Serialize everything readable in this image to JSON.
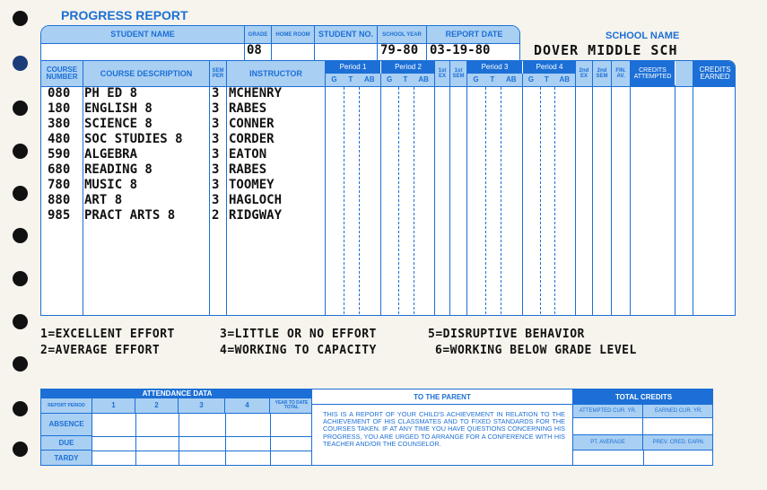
{
  "title": "PROGRESS REPORT",
  "header": {
    "labels": {
      "student_name": "STUDENT NAME",
      "grade": "GRADE",
      "home_room": "HOME ROOM",
      "student_no": "STUDENT NO.",
      "school_year": "SCHOOL YEAR",
      "report_date": "REPORT DATE",
      "school_name": "SCHOOL NAME"
    },
    "values": {
      "student_name": "",
      "grade": "08",
      "home_room": "",
      "student_no": "",
      "school_year": "79-80",
      "report_date": "03-19-80",
      "school_name": "DOVER MIDDLE SCH"
    }
  },
  "table": {
    "headers": {
      "course_number": "COURSE NUMBER",
      "course_description": "COURSE DESCRIPTION",
      "sem_per": "SEM PER",
      "instructor": "INSTRUCTOR",
      "period1": "Period 1",
      "period2": "Period 2",
      "first_ex": "1st EX",
      "first_sem": "1st SEM",
      "period3": "Period 3",
      "period4": "Period 4",
      "second_ex": "2nd EX",
      "second_sem": "2nd SEM",
      "fin_av": "FIN. AV.",
      "credits_attempted": "CREDITS ATTEMPTED",
      "credits_earned": "CREDITS EARNED",
      "sub_g": "G",
      "sub_t": "T",
      "sub_ab": "AB"
    },
    "rows": [
      {
        "number": "080",
        "description": "PH ED 8",
        "sem_per": "3",
        "instructor": "MCHENRY"
      },
      {
        "number": "180",
        "description": "ENGLISH 8",
        "sem_per": "3",
        "instructor": "RABES"
      },
      {
        "number": "380",
        "description": "SCIENCE 8",
        "sem_per": "3",
        "instructor": "CONNER"
      },
      {
        "number": "480",
        "description": "SOC STUDIES 8",
        "sem_per": "3",
        "instructor": "CORDER"
      },
      {
        "number": "590",
        "description": "ALGEBRA",
        "sem_per": "3",
        "instructor": "EATON"
      },
      {
        "number": "680",
        "description": "READING 8",
        "sem_per": "3",
        "instructor": "RABES"
      },
      {
        "number": "780",
        "description": "MUSIC 8",
        "sem_per": "3",
        "instructor": "TOOMEY"
      },
      {
        "number": "880",
        "description": "ART 8",
        "sem_per": "3",
        "instructor": "HAGLOCH"
      },
      {
        "number": "985",
        "description": "PRACT ARTS 8",
        "sem_per": "2",
        "instructor": "RIDGWAY"
      }
    ]
  },
  "legend": [
    "1=EXCELLENT EFFORT",
    "3=LITTLE OR NO EFFORT",
    "5=DISRUPTIVE BEHAVIOR",
    "2=AVERAGE EFFORT",
    "4=WORKING TO CAPACITY",
    "6=WORKING BELOW GRADE LEVEL"
  ],
  "attendance": {
    "title": "ATTENDANCE DATA",
    "report_period": "REPORT PERIOD",
    "periods": [
      "1",
      "2",
      "3",
      "4"
    ],
    "ytd": "YEAR TO DATE TOTAL",
    "rows": [
      "ABSENCE",
      "DUE",
      "TARDY"
    ]
  },
  "parent": {
    "title": "TO THE PARENT",
    "text": "THIS IS A REPORT OF YOUR CHILD'S ACHIEVEMENT IN RELATION TO THE ACHIEVEMENT OF HIS CLASSMATES AND TO FIXED STANDARDS FOR THE COURSES TAKEN. IF AT ANY TIME YOU HAVE QUESTIONS CONCERNING HIS PROGRESS, YOU ARE URGED TO ARRANGE FOR A CONFERENCE WITH HIS TEACHER AND/OR THE COUNSELOR."
  },
  "total_credits": {
    "title": "TOTAL CREDITS",
    "attempted": "ATTEMPTED CUR. YR.",
    "earned": "EARNED CUR. YR.",
    "pt_average": "PT. AVERAGE",
    "prev": "PREV. CRED. EARN."
  },
  "colors": {
    "blue": "#1c6fd6",
    "light_blue": "#a9cff3",
    "paper": "#f6f4ec"
  }
}
